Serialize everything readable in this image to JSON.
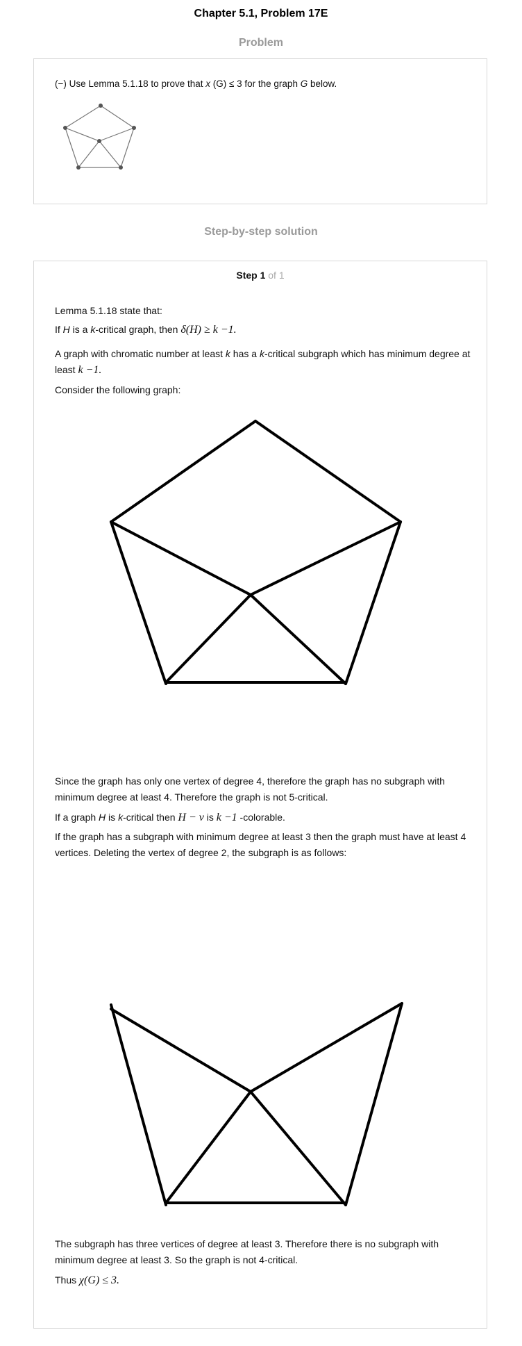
{
  "header": {
    "title": "Chapter 5.1, Problem 17E"
  },
  "problem": {
    "heading": "Problem",
    "text_prefix": "(−) Use Lemma 5.1.18 to prove that ",
    "text_chi": "x",
    "text_mid": " (G) ≤ 3 for the graph ",
    "text_g": "G",
    "text_suffix": " below."
  },
  "solution": {
    "heading": "Step-by-step solution",
    "step_label": "Step 1",
    "step_of": " of 1",
    "p1": "Lemma 5.1.18 state that:",
    "p2_a": "If ",
    "p2_H": "H",
    "p2_b": " is a ",
    "p2_k": "k",
    "p2_c": "-critical graph, then ",
    "p2_math": "δ(H) ≥ k −1.",
    "p3_a": "A graph with chromatic number at least ",
    "p3_k1": "k",
    "p3_b": " has a ",
    "p3_k2": "k",
    "p3_c": "-critical subgraph which has minimum degree at least ",
    "p3_math": "k −1.",
    "p4": "Consider the following graph:",
    "p5": "Since the graph has only one vertex of degree 4, therefore the graph has no subgraph with minimum degree at least 4. Therefore the graph is not 5-critical.",
    "p6_a": "If a graph ",
    "p6_H": "H",
    "p6_b": " is ",
    "p6_k": "k",
    "p6_c": "-critical then ",
    "p6_math1": "H − v",
    "p6_d": " is ",
    "p6_math2": "k −1",
    "p6_e": " -colorable.",
    "p7": "If the graph has a subgraph with minimum degree at least 3 then the graph must have at least 4 vertices. Deleting the vertex of degree 2, the subgraph is as follows:",
    "p8": "The subgraph has three vertices of degree at least 3. Therefore there is no subgraph with minimum degree at least 3. So the graph is not 4-critical.",
    "p9_a": "Thus ",
    "p9_math": "χ(G) ≤ 3."
  }
}
